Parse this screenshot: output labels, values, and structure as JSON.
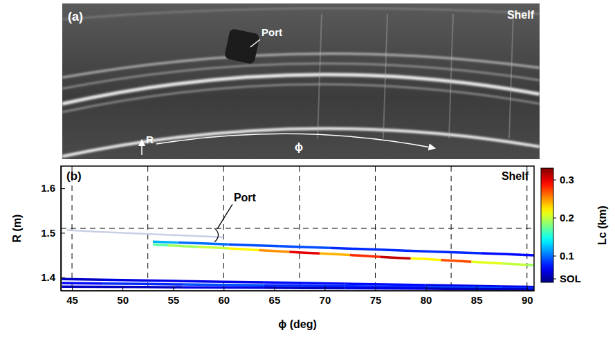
{
  "chart_data": {
    "type": "line",
    "panel_label": "(b)",
    "corner_text": "Shelf",
    "x_label": "ϕ (deg)",
    "y_label": "R (m)",
    "xlim": [
      43.9,
      90.7
    ],
    "xticks": [
      45,
      50,
      55,
      60,
      65,
      70,
      75,
      80,
      85,
      90
    ],
    "ylim": [
      1.37,
      1.65
    ],
    "yticks": [
      1.4,
      1.5,
      1.6
    ],
    "grid": true,
    "grid_x": [
      45,
      52.5,
      60,
      67.5,
      75,
      82.5,
      90
    ],
    "grid_y": [
      1.51
    ],
    "colorbar": {
      "label": "Lc (km)",
      "range": [
        0.03,
        0.33
      ],
      "ticks": [
        {
          "value": 0.04,
          "label": "SOL"
        },
        0.1,
        0.2,
        0.3
      ]
    },
    "annotations": [
      {
        "text": "Port",
        "x": 61,
        "y": 1.57,
        "target_x": 59.3,
        "target_y": 1.495
      }
    ],
    "series": [
      {
        "color": "#c9cfe6",
        "x": [
          44.5,
          48,
          52,
          56,
          60
        ],
        "values": [
          1.506,
          1.502,
          1.498,
          1.494,
          1.49
        ]
      },
      {
        "x": [
          53,
          58,
          63,
          68,
          73,
          78,
          83,
          88,
          91
        ],
        "values": [
          1.48,
          1.476,
          1.472,
          1.468,
          1.464,
          1.46,
          1.456,
          1.452,
          1.449
        ],
        "lc": [
          0.12,
          0.1,
          0.09,
          0.09,
          0.08,
          0.08,
          0.08,
          0.07,
          0.07
        ]
      },
      {
        "x": [
          53,
          56,
          59,
          62,
          65,
          68,
          71,
          74,
          77,
          80,
          83,
          86,
          89,
          91
        ],
        "values": [
          1.474,
          1.47,
          1.467,
          1.463,
          1.459,
          1.455,
          1.452,
          1.448,
          1.444,
          1.441,
          1.437,
          1.433,
          1.429,
          1.427
        ],
        "lc": [
          0.17,
          0.19,
          0.2,
          0.22,
          0.25,
          0.3,
          0.24,
          0.28,
          0.31,
          0.22,
          0.27,
          0.21,
          0.2,
          0.19
        ]
      },
      {
        "x": [
          44,
          52,
          60,
          68,
          76,
          84,
          91
        ],
        "values": [
          1.396,
          1.393,
          1.39,
          1.387,
          1.384,
          1.381,
          1.378
        ],
        "lc": [
          0.05,
          0.06,
          0.06,
          0.07,
          0.07,
          0.06,
          0.06
        ]
      },
      {
        "x": [
          44,
          52,
          60,
          68,
          76,
          84,
          91
        ],
        "values": [
          1.387,
          1.385,
          1.383,
          1.381,
          1.379,
          1.377,
          1.375
        ],
        "lc": [
          0.07,
          0.08,
          0.09,
          0.08,
          0.08,
          0.09,
          0.08
        ]
      },
      {
        "x": [
          44,
          52,
          60,
          68,
          76,
          84,
          91
        ],
        "values": [
          1.379,
          1.378,
          1.377,
          1.376,
          1.375,
          1.374,
          1.373
        ],
        "lc": [
          0.05,
          0.05,
          0.06,
          0.05,
          0.06,
          0.05,
          0.05
        ]
      }
    ]
  },
  "photo": {
    "panel_label": "(a)",
    "corner_text": "Shelf",
    "port_label": "Port",
    "r_label": "R",
    "phi_label": "ϕ"
  }
}
